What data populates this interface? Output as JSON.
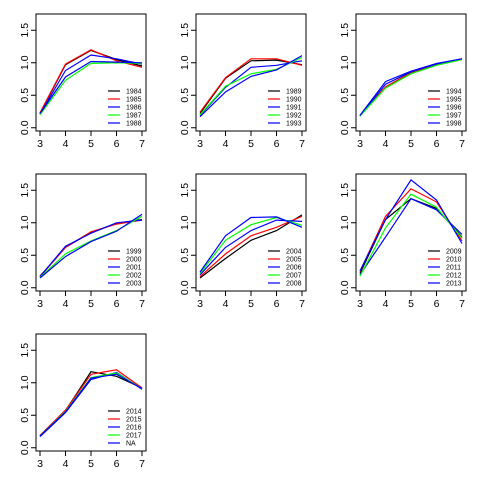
{
  "chart_data": [
    {
      "type": "line",
      "x": [
        3,
        4,
        5,
        6,
        7
      ],
      "xlim": [
        3,
        7
      ],
      "ylim": [
        -0.05,
        1.75
      ],
      "yticks": [
        0.0,
        0.5,
        1.0,
        1.5
      ],
      "xticks": [
        3,
        4,
        5,
        6,
        7
      ],
      "grid": false,
      "legend_position": "bottom-right",
      "series": [
        {
          "name": "1984",
          "color": "#000000",
          "values": [
            0.22,
            0.97,
            1.19,
            1.05,
            0.95
          ]
        },
        {
          "name": "1985",
          "color": "#ff0000",
          "values": [
            0.23,
            0.98,
            1.2,
            1.03,
            0.93
          ]
        },
        {
          "name": "1986",
          "color": "#0000ff",
          "values": [
            0.21,
            0.88,
            1.12,
            1.06,
            0.98
          ]
        },
        {
          "name": "1987",
          "color": "#00ff00",
          "values": [
            0.2,
            0.73,
            0.99,
            1.0,
            0.99
          ]
        },
        {
          "name": "1988",
          "color": "#0000ff",
          "values": [
            0.22,
            0.78,
            1.02,
            1.01,
            1.0
          ]
        }
      ]
    },
    {
      "type": "line",
      "x": [
        3,
        4,
        5,
        6,
        7
      ],
      "xlim": [
        3,
        7
      ],
      "ylim": [
        -0.05,
        1.75
      ],
      "yticks": [
        0.0,
        0.5,
        1.0,
        1.5
      ],
      "xticks": [
        3,
        4,
        5,
        6,
        7
      ],
      "grid": false,
      "legend_position": "bottom-right",
      "series": [
        {
          "name": "1989",
          "color": "#000000",
          "values": [
            0.22,
            0.76,
            1.03,
            1.04,
            0.97
          ]
        },
        {
          "name": "1990",
          "color": "#ff0000",
          "values": [
            0.24,
            0.77,
            1.06,
            1.06,
            0.96
          ]
        },
        {
          "name": "1991",
          "color": "#0000ff",
          "values": [
            0.19,
            0.62,
            0.93,
            0.96,
            1.03
          ]
        },
        {
          "name": "1992",
          "color": "#00ff00",
          "values": [
            0.2,
            0.64,
            0.83,
            0.9,
            1.08
          ]
        },
        {
          "name": "1993",
          "color": "#0000ff",
          "values": [
            0.17,
            0.55,
            0.79,
            0.89,
            1.11
          ]
        }
      ]
    },
    {
      "type": "line",
      "x": [
        3,
        4,
        5,
        6,
        7
      ],
      "xlim": [
        3,
        7
      ],
      "ylim": [
        -0.05,
        1.75
      ],
      "yticks": [
        0.0,
        0.5,
        1.0,
        1.5
      ],
      "xticks": [
        3,
        4,
        5,
        6,
        7
      ],
      "grid": false,
      "legend_position": "bottom-right",
      "series": [
        {
          "name": "1994",
          "color": "#000000",
          "values": [
            0.18,
            0.62,
            0.84,
            0.98,
            1.06
          ]
        },
        {
          "name": "1995",
          "color": "#ff0000",
          "values": [
            0.19,
            0.63,
            0.85,
            0.97,
            1.05
          ]
        },
        {
          "name": "1996",
          "color": "#0000ff",
          "values": [
            0.18,
            0.67,
            0.86,
            0.98,
            1.06
          ]
        },
        {
          "name": "1997",
          "color": "#00ff00",
          "values": [
            0.18,
            0.61,
            0.83,
            0.96,
            1.05
          ]
        },
        {
          "name": "1998",
          "color": "#0000ff",
          "values": [
            0.19,
            0.71,
            0.87,
            0.99,
            1.06
          ]
        }
      ]
    },
    {
      "type": "line",
      "x": [
        3,
        4,
        5,
        6,
        7
      ],
      "xlim": [
        3,
        7
      ],
      "ylim": [
        -0.05,
        1.75
      ],
      "yticks": [
        0.0,
        0.5,
        1.0,
        1.5
      ],
      "xticks": [
        3,
        4,
        5,
        6,
        7
      ],
      "grid": false,
      "legend_position": "bottom-right",
      "series": [
        {
          "name": "1999",
          "color": "#000000",
          "values": [
            0.18,
            0.62,
            0.85,
            0.99,
            1.05
          ]
        },
        {
          "name": "2000",
          "color": "#ff0000",
          "values": [
            0.17,
            0.62,
            0.86,
            0.98,
            1.04
          ]
        },
        {
          "name": "2001",
          "color": "#0000ff",
          "values": [
            0.17,
            0.64,
            0.84,
            1.0,
            1.04
          ]
        },
        {
          "name": "2002",
          "color": "#00ff00",
          "values": [
            0.16,
            0.52,
            0.72,
            0.88,
            1.1
          ]
        },
        {
          "name": "2003",
          "color": "#0000ff",
          "values": [
            0.15,
            0.48,
            0.71,
            0.87,
            1.13
          ]
        }
      ]
    },
    {
      "type": "line",
      "x": [
        3,
        4,
        5,
        6,
        7
      ],
      "xlim": [
        3,
        7
      ],
      "ylim": [
        -0.05,
        1.75
      ],
      "yticks": [
        0.0,
        0.5,
        1.0,
        1.5
      ],
      "xticks": [
        3,
        4,
        5,
        6,
        7
      ],
      "grid": false,
      "legend_position": "bottom-right",
      "series": [
        {
          "name": "2004",
          "color": "#000000",
          "values": [
            0.15,
            0.45,
            0.73,
            0.88,
            1.12
          ]
        },
        {
          "name": "2005",
          "color": "#ff0000",
          "values": [
            0.17,
            0.52,
            0.8,
            0.93,
            1.1
          ]
        },
        {
          "name": "2006",
          "color": "#0000ff",
          "values": [
            0.2,
            0.62,
            0.88,
            1.04,
            1.02
          ]
        },
        {
          "name": "2007",
          "color": "#00ff00",
          "values": [
            0.22,
            0.73,
            0.97,
            1.08,
            0.96
          ]
        },
        {
          "name": "2008",
          "color": "#0000ff",
          "values": [
            0.24,
            0.8,
            1.08,
            1.09,
            0.93
          ]
        }
      ]
    },
    {
      "type": "line",
      "x": [
        3,
        4,
        5,
        6,
        7
      ],
      "xlim": [
        3,
        7
      ],
      "ylim": [
        -0.05,
        1.75
      ],
      "yticks": [
        0.0,
        0.5,
        1.0,
        1.5
      ],
      "xticks": [
        3,
        4,
        5,
        6,
        7
      ],
      "grid": false,
      "legend_position": "bottom-right",
      "series": [
        {
          "name": "2009",
          "color": "#000000",
          "values": [
            0.22,
            1.05,
            1.37,
            1.22,
            0.78
          ]
        },
        {
          "name": "2010",
          "color": "#ff0000",
          "values": [
            0.25,
            1.1,
            1.52,
            1.32,
            0.72
          ]
        },
        {
          "name": "2011",
          "color": "#0000ff",
          "values": [
            0.2,
            0.78,
            1.37,
            1.2,
            0.82
          ]
        },
        {
          "name": "2012",
          "color": "#00ff00",
          "values": [
            0.18,
            0.92,
            1.44,
            1.24,
            0.76
          ]
        },
        {
          "name": "2013",
          "color": "#0000ff",
          "values": [
            0.26,
            1.05,
            1.66,
            1.35,
            0.68
          ]
        }
      ]
    },
    {
      "type": "line",
      "x": [
        3,
        4,
        5,
        6,
        7
      ],
      "xlim": [
        3,
        7
      ],
      "ylim": [
        -0.05,
        1.75
      ],
      "yticks": [
        0.0,
        0.5,
        1.0,
        1.5
      ],
      "xticks": [
        3,
        4,
        5,
        6,
        7
      ],
      "grid": false,
      "legend_position": "bottom-right",
      "series": [
        {
          "name": "2014",
          "color": "#000000",
          "values": [
            0.18,
            0.57,
            1.17,
            1.1,
            0.92
          ]
        },
        {
          "name": "2015",
          "color": "#ff0000",
          "values": [
            0.19,
            0.58,
            1.13,
            1.2,
            0.92
          ]
        },
        {
          "name": "2016",
          "color": "#0000ff",
          "values": [
            0.17,
            0.54,
            1.05,
            1.16,
            0.9
          ]
        },
        {
          "name": "2017",
          "color": "#00ff00",
          "values": [
            0.18,
            0.56,
            1.08,
            1.15,
            0.91
          ]
        },
        {
          "name": "NA",
          "color": "#0000ff",
          "values": [
            0.18,
            0.55,
            1.07,
            1.13,
            0.91
          ]
        }
      ]
    }
  ]
}
